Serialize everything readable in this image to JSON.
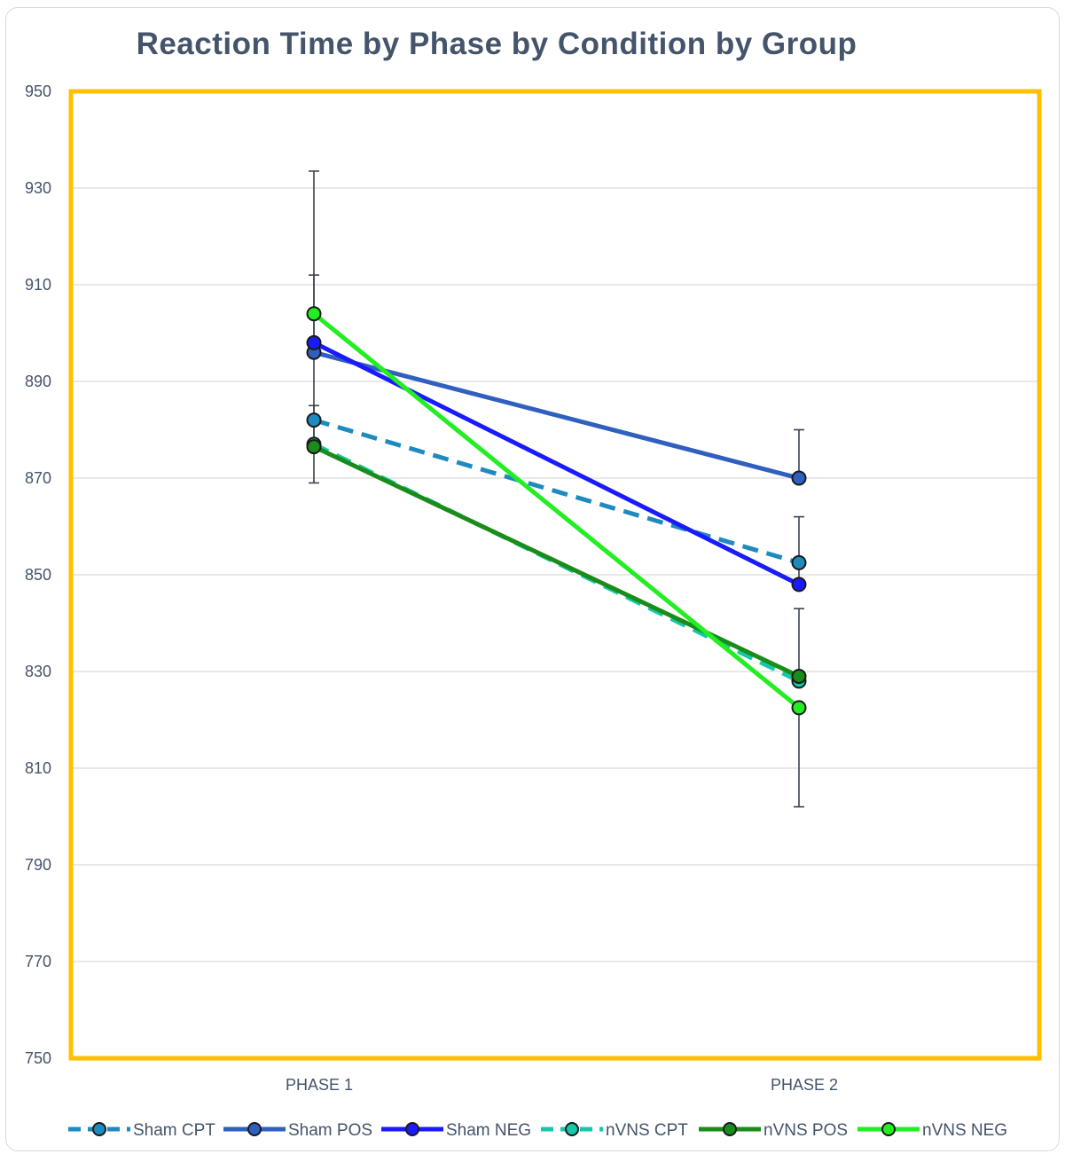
{
  "chart_data": {
    "type": "line",
    "title": "Reaction Time by Phase by Condition by Group",
    "xlabel": "",
    "ylabel": "",
    "categories": [
      "PHASE 1",
      "PHASE 2"
    ],
    "ylim": [
      750,
      950
    ],
    "yticks": [
      750,
      770,
      790,
      810,
      830,
      850,
      870,
      890,
      910,
      930,
      950
    ],
    "grid": true,
    "legend_position": "bottom",
    "plot_border_color": "#ffc000",
    "series": [
      {
        "name": "Sham CPT",
        "values": [
          882,
          852.5
        ],
        "error": [
          [
            882,
            882
          ],
          [
            852.5,
            852.5
          ]
        ],
        "color": "#1f8ac0",
        "dash": true
      },
      {
        "name": "Sham POS",
        "values": [
          896,
          870
        ],
        "error": [
          [
            null,
            null
          ],
          [
            870,
            880
          ]
        ],
        "color": "#2f5fbf",
        "dash": false
      },
      {
        "name": "Sham NEG",
        "values": [
          898,
          848
        ],
        "error": [
          [
            898,
            912
          ],
          [
            848,
            862
          ]
        ],
        "color": "#1a1aff",
        "dash": false
      },
      {
        "name": "nVNS CPT",
        "values": [
          877,
          828
        ],
        "error": [
          [
            877,
            885
          ],
          [
            828,
            843
          ]
        ],
        "color": "#14c8a8",
        "dash": true
      },
      {
        "name": "nVNS POS",
        "values": [
          876.5,
          829
        ],
        "error": [
          [
            876.5,
            876.5
          ],
          [
            829,
            829
          ]
        ],
        "color": "#1a8c1a",
        "dash": false
      },
      {
        "name": "nVNS NEG",
        "values": [
          904,
          822.5
        ],
        "error": [
          [
            869,
            933.5
          ],
          [
            802,
            822.5
          ]
        ],
        "color": "#22ee22",
        "dash": false
      }
    ]
  }
}
